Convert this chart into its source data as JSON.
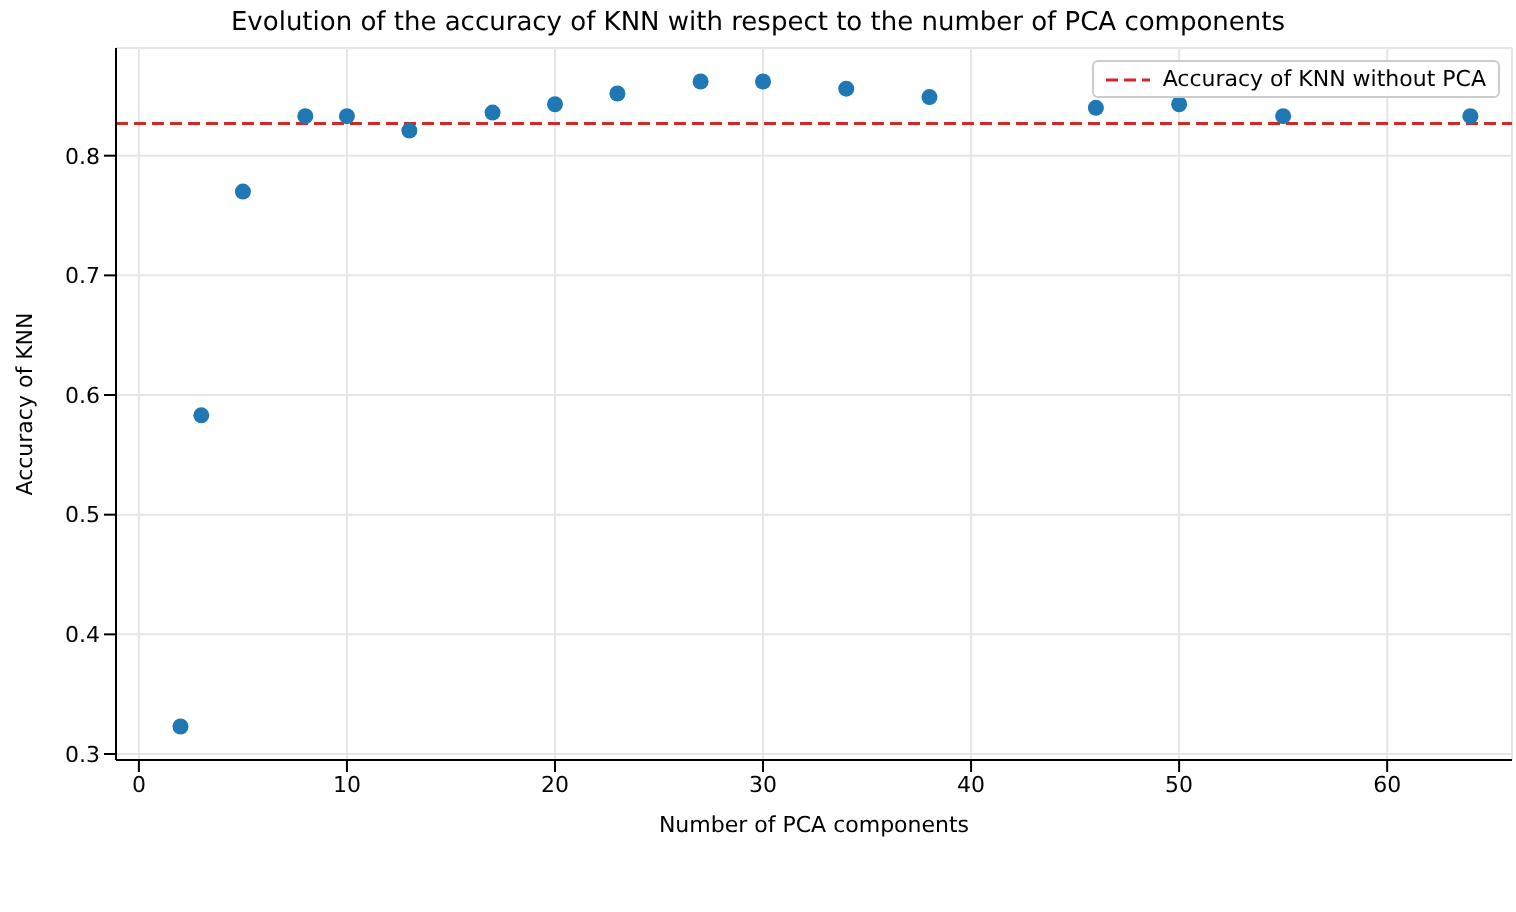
{
  "chart_data": {
    "type": "scatter",
    "title": "Evolution of the accuracy of KNN with respect to the number of PCA components",
    "xlabel": "Number of PCA components",
    "ylabel": "Accuracy of KNN",
    "x": [
      2,
      3,
      5,
      8,
      10,
      13,
      17,
      20,
      23,
      27,
      30,
      34,
      38,
      46,
      50,
      55,
      64
    ],
    "series": [
      {
        "color": "#1f77b4",
        "values": [
          0.323,
          0.583,
          0.77,
          0.833,
          0.833,
          0.821,
          0.836,
          0.843,
          0.852,
          0.862,
          0.862,
          0.856,
          0.849,
          0.84,
          0.843,
          0.833,
          0.833
        ]
      }
    ],
    "ref_lines": [
      {
        "axis": "y",
        "value": 0.827,
        "label": "Accuracy of KNN without PCA",
        "color": "#d62728",
        "line_style": "dashed"
      }
    ],
    "xlim": [
      -1.1,
      66
    ],
    "xticks": [
      0,
      10,
      20,
      30,
      40,
      50,
      60
    ],
    "ylim": [
      0.295,
      0.89
    ],
    "yticks": [
      0.3,
      0.4,
      0.5,
      0.6,
      0.7,
      0.8
    ],
    "grid": true,
    "legend": "top right",
    "marker": "circle"
  }
}
